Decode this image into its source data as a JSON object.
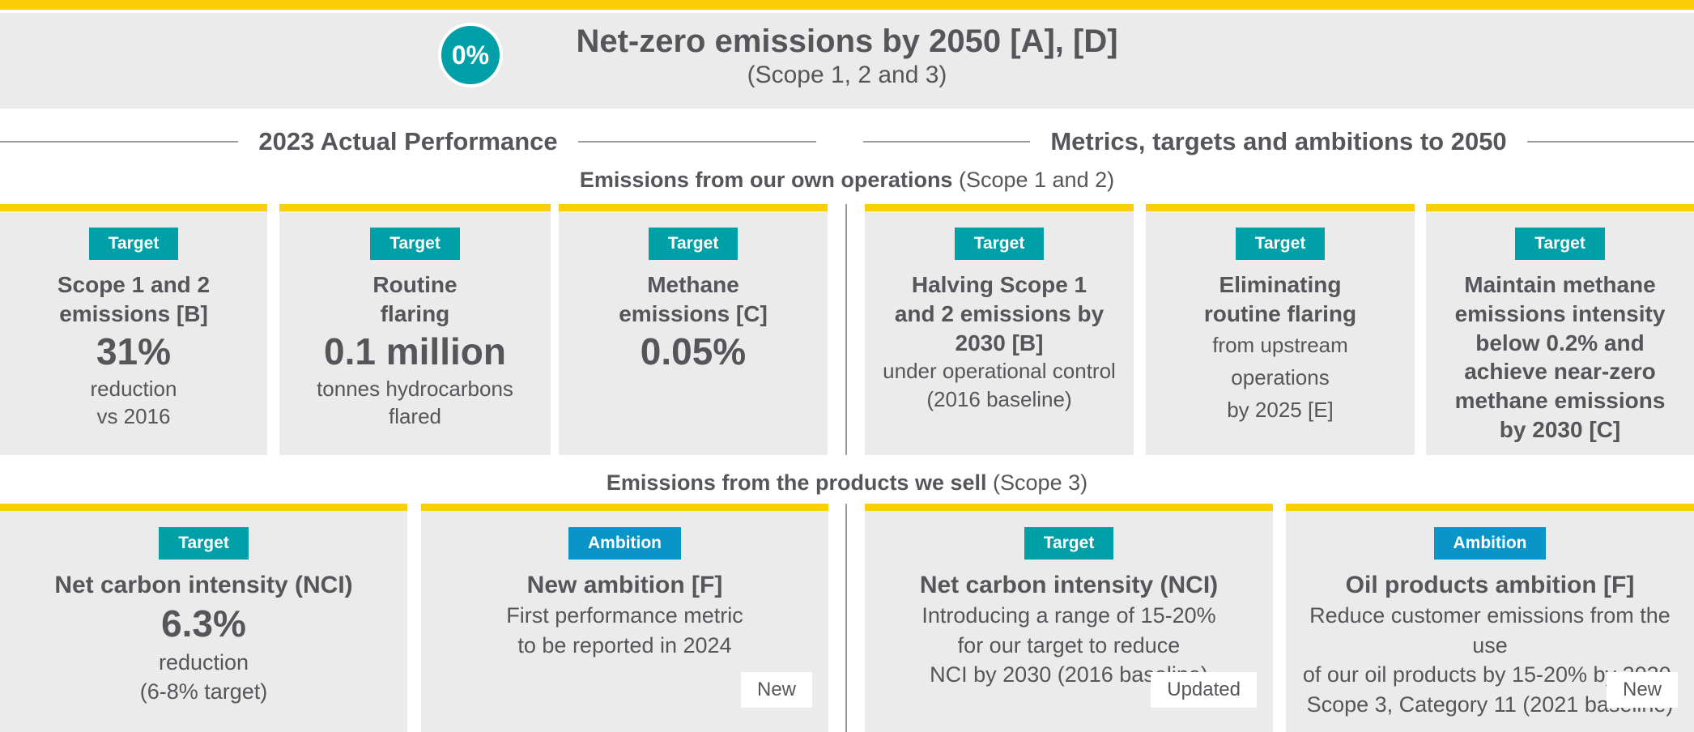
{
  "colors": {
    "accent-yellow": "#FBCE07",
    "teal": "#00A0A8",
    "blue": "#0A95C8",
    "card-bg": "#EBEBEB",
    "text-dark": "#54565A",
    "line-gray": "#9B9B9B"
  },
  "header": {
    "badge_value": "0%",
    "title": "Net-zero emissions by 2050 [A], [D]",
    "subtitle": "(Scope 1, 2 and 3)"
  },
  "columns": {
    "left": "2023 Actual Performance",
    "right": "Metrics, targets and ambitions to 2050"
  },
  "sections": [
    {
      "label_bold": "Emissions from our own operations",
      "label_normal": "(Scope 1 and 2)"
    },
    {
      "label_bold": "Emissions from the products we sell",
      "label_normal": "(Scope 3)"
    }
  ],
  "cards_row1": [
    {
      "badge": "Target",
      "title": "Scope 1 and 2\nemissions [B]",
      "value": "31%",
      "sub": "reduction\nvs 2016"
    },
    {
      "badge": "Target",
      "title": "Routine\nflaring",
      "value": "0.1 million",
      "sub": "tonnes hydrocarbons\nflared"
    },
    {
      "badge": "Target",
      "title": "Methane\nemissions [C]",
      "value": "0.05%"
    },
    {
      "badge": "Target",
      "title": "Halving Scope 1\nand 2 emissions by\n2030 [B]",
      "sub": "under operational control\n(2016 baseline)"
    },
    {
      "badge": "Target",
      "title": "Eliminating\nroutine flaring",
      "sub": "from upstream\noperations\nby 2025 [E]"
    },
    {
      "badge": "Target",
      "title": "Maintain methane\nemissions intensity\nbelow 0.2% and\nachieve near-zero\nmethane emissions\nby 2030 [C]"
    }
  ],
  "cards_row2": [
    {
      "badge": "Target",
      "title": "Net carbon intensity (NCI)",
      "value": "6.3%",
      "sub": "reduction\n(6-8% target)"
    },
    {
      "badge": "Ambition",
      "title": "New ambition [F]",
      "sub": "First performance metric\nto be reported in 2024",
      "flag": "New"
    },
    {
      "badge": "Target",
      "title": "Net carbon intensity (NCI)",
      "sub": "Introducing a range of 15-20%\nfor our target to reduce\nNCI by 2030 (2016 baseline)",
      "flag": "Updated"
    },
    {
      "badge": "Ambition",
      "title": "Oil products ambition [F]",
      "sub": "Reduce customer emissions from the use\nof our oil products by 15-20% by 2030,\nScope 3, Category 11 (2021 baseline)",
      "flag": "New"
    }
  ]
}
